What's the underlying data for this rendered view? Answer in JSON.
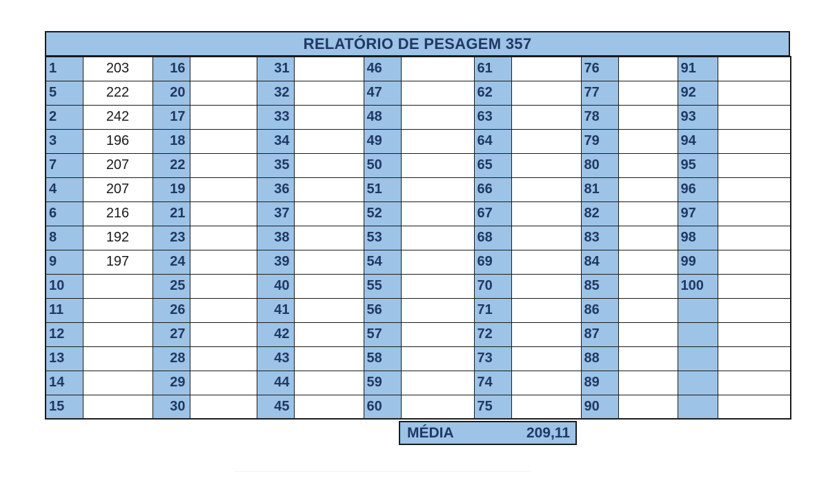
{
  "report": {
    "title": "RELATÓRIO DE PESAGEM 357",
    "rows": [
      {
        "n": [
          "1",
          "16",
          "31",
          "46",
          "61",
          "76",
          "91"
        ],
        "v": [
          "203",
          "",
          "",
          "",
          "",
          "",
          ""
        ]
      },
      {
        "n": [
          "5",
          "20",
          "32",
          "47",
          "62",
          "77",
          "92"
        ],
        "v": [
          "222",
          "",
          "",
          "",
          "",
          "",
          ""
        ]
      },
      {
        "n": [
          "2",
          "17",
          "33",
          "48",
          "63",
          "78",
          "93"
        ],
        "v": [
          "242",
          "",
          "",
          "",
          "",
          "",
          ""
        ]
      },
      {
        "n": [
          "3",
          "18",
          "34",
          "49",
          "64",
          "79",
          "94"
        ],
        "v": [
          "196",
          "",
          "",
          "",
          "",
          "",
          ""
        ]
      },
      {
        "n": [
          "7",
          "22",
          "35",
          "50",
          "65",
          "80",
          "95"
        ],
        "v": [
          "207",
          "",
          "",
          "",
          "",
          "",
          ""
        ]
      },
      {
        "n": [
          "4",
          "19",
          "36",
          "51",
          "66",
          "81",
          "96"
        ],
        "v": [
          "207",
          "",
          "",
          "",
          "",
          "",
          ""
        ]
      },
      {
        "n": [
          "6",
          "21",
          "37",
          "52",
          "67",
          "82",
          "97"
        ],
        "v": [
          "216",
          "",
          "",
          "",
          "",
          "",
          ""
        ]
      },
      {
        "n": [
          "8",
          "23",
          "38",
          "53",
          "68",
          "83",
          "98"
        ],
        "v": [
          "192",
          "",
          "",
          "",
          "",
          "",
          ""
        ]
      },
      {
        "n": [
          "9",
          "24",
          "39",
          "54",
          "69",
          "84",
          "99"
        ],
        "v": [
          "197",
          "",
          "",
          "",
          "",
          "",
          ""
        ]
      },
      {
        "n": [
          "10",
          "25",
          "40",
          "55",
          "70",
          "85",
          "100"
        ],
        "v": [
          "",
          "",
          "",
          "",
          "",
          "",
          ""
        ]
      },
      {
        "n": [
          "11",
          "26",
          "41",
          "56",
          "71",
          "86",
          ""
        ],
        "v": [
          "",
          "",
          "",
          "",
          "",
          "",
          ""
        ]
      },
      {
        "n": [
          "12",
          "27",
          "42",
          "57",
          "72",
          "87",
          ""
        ],
        "v": [
          "",
          "",
          "",
          "",
          "",
          "",
          ""
        ]
      },
      {
        "n": [
          "13",
          "28",
          "43",
          "58",
          "73",
          "88",
          ""
        ],
        "v": [
          "",
          "",
          "",
          "",
          "",
          "",
          ""
        ]
      },
      {
        "n": [
          "14",
          "29",
          "44",
          "59",
          "74",
          "89",
          ""
        ],
        "v": [
          "",
          "",
          "",
          "",
          "",
          "",
          ""
        ]
      },
      {
        "n": [
          "15",
          "30",
          "45",
          "60",
          "75",
          "90",
          ""
        ],
        "v": [
          "",
          "",
          "",
          "",
          "",
          "",
          ""
        ]
      }
    ],
    "media_label": "MÉDIA",
    "media_value": "209,11"
  },
  "colors": {
    "header_fill": "#9dc3e6",
    "number_text": "#1f3864",
    "grid_line": "#1a1a1a"
  }
}
